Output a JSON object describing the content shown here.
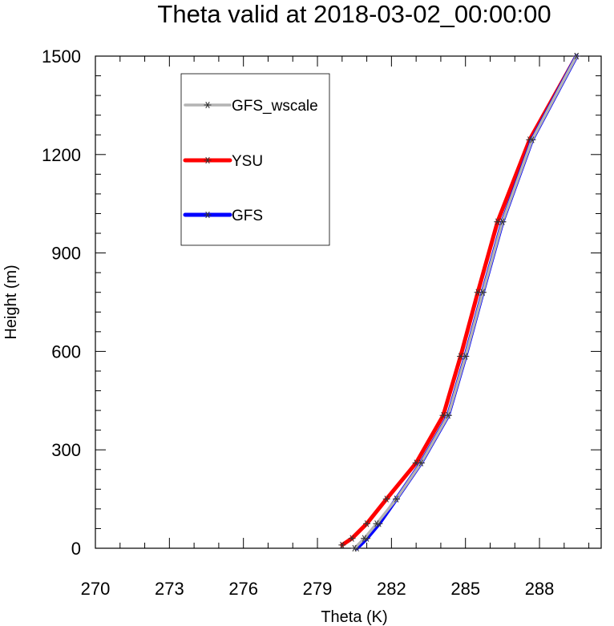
{
  "chart_data": {
    "type": "line",
    "title": "Theta valid at 2018-03-02_00:00:00",
    "xlabel": "Theta (K)",
    "ylabel": "Height (m)",
    "xlim": [
      270,
      290.5
    ],
    "ylim": [
      0,
      1500
    ],
    "x_ticks": [
      270,
      273,
      276,
      279,
      282,
      285,
      288
    ],
    "x_tick_labels": [
      "270",
      "273",
      "276",
      "279",
      "282",
      "285",
      "288"
    ],
    "y_ticks": [
      0,
      300,
      600,
      900,
      1200,
      1500
    ],
    "y_tick_labels": [
      "0",
      "300",
      "600",
      "900",
      "1200",
      "1500"
    ],
    "grid": false,
    "legend_position": "top-left",
    "series": [
      {
        "name": "GFS_wscale",
        "color": "#b4b4b4",
        "marker": "star",
        "points": [
          [
            280.5,
            0
          ],
          [
            280.9,
            30
          ],
          [
            281.4,
            75
          ],
          [
            282.2,
            150
          ],
          [
            283.2,
            260
          ],
          [
            284.3,
            405
          ],
          [
            285.0,
            585
          ],
          [
            285.7,
            780
          ],
          [
            286.5,
            995
          ],
          [
            287.7,
            1245
          ],
          [
            289.5,
            1500
          ]
        ]
      },
      {
        "name": "YSU",
        "color": "#ff0000",
        "marker": "star",
        "points": [
          [
            280.0,
            10
          ],
          [
            280.4,
            30
          ],
          [
            281.0,
            75
          ],
          [
            281.8,
            150
          ],
          [
            283.0,
            260
          ],
          [
            284.1,
            405
          ],
          [
            284.8,
            585
          ],
          [
            285.5,
            780
          ],
          [
            286.3,
            995
          ],
          [
            287.6,
            1245
          ],
          [
            289.5,
            1500
          ]
        ]
      },
      {
        "name": "GFS",
        "color": "#0000ff",
        "marker": "star",
        "points": [
          [
            280.6,
            0
          ],
          [
            281.0,
            30
          ],
          [
            281.5,
            75
          ],
          [
            282.2,
            150
          ],
          [
            283.2,
            260
          ],
          [
            284.3,
            405
          ],
          [
            285.0,
            585
          ],
          [
            285.7,
            780
          ],
          [
            286.5,
            995
          ],
          [
            287.7,
            1245
          ],
          [
            289.5,
            1500
          ]
        ]
      }
    ]
  }
}
